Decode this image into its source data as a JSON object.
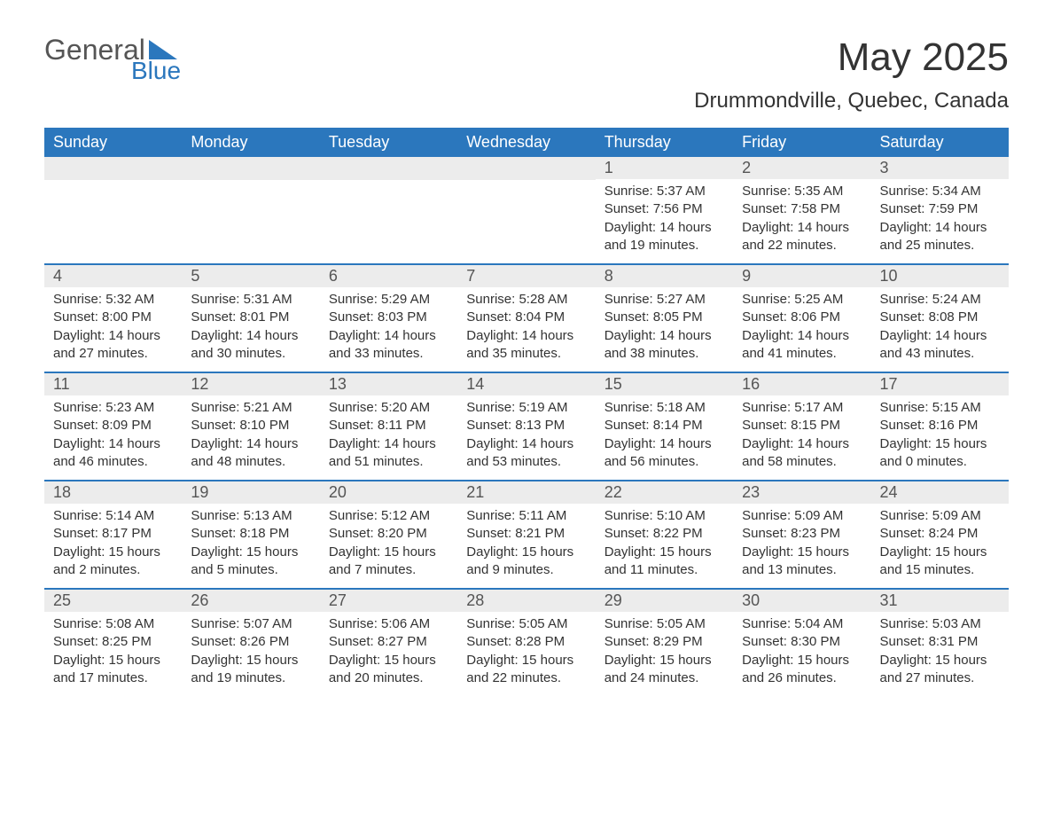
{
  "logo": {
    "text1": "General",
    "text2": "Blue",
    "triangle_color": "#2b77bd"
  },
  "title": "May 2025",
  "location": "Drummondville, Quebec, Canada",
  "colors": {
    "header_bg": "#2b77bd",
    "header_text": "#ffffff",
    "daynum_bg": "#ececec",
    "daynum_text": "#555555",
    "body_text": "#333333",
    "week_divider": "#2b77bd"
  },
  "weekdays": [
    "Sunday",
    "Monday",
    "Tuesday",
    "Wednesday",
    "Thursday",
    "Friday",
    "Saturday"
  ],
  "weeks": [
    [
      {
        "day": null
      },
      {
        "day": null
      },
      {
        "day": null
      },
      {
        "day": null
      },
      {
        "day": "1",
        "sunrise": "Sunrise: 5:37 AM",
        "sunset": "Sunset: 7:56 PM",
        "daylight": "Daylight: 14 hours and 19 minutes."
      },
      {
        "day": "2",
        "sunrise": "Sunrise: 5:35 AM",
        "sunset": "Sunset: 7:58 PM",
        "daylight": "Daylight: 14 hours and 22 minutes."
      },
      {
        "day": "3",
        "sunrise": "Sunrise: 5:34 AM",
        "sunset": "Sunset: 7:59 PM",
        "daylight": "Daylight: 14 hours and 25 minutes."
      }
    ],
    [
      {
        "day": "4",
        "sunrise": "Sunrise: 5:32 AM",
        "sunset": "Sunset: 8:00 PM",
        "daylight": "Daylight: 14 hours and 27 minutes."
      },
      {
        "day": "5",
        "sunrise": "Sunrise: 5:31 AM",
        "sunset": "Sunset: 8:01 PM",
        "daylight": "Daylight: 14 hours and 30 minutes."
      },
      {
        "day": "6",
        "sunrise": "Sunrise: 5:29 AM",
        "sunset": "Sunset: 8:03 PM",
        "daylight": "Daylight: 14 hours and 33 minutes."
      },
      {
        "day": "7",
        "sunrise": "Sunrise: 5:28 AM",
        "sunset": "Sunset: 8:04 PM",
        "daylight": "Daylight: 14 hours and 35 minutes."
      },
      {
        "day": "8",
        "sunrise": "Sunrise: 5:27 AM",
        "sunset": "Sunset: 8:05 PM",
        "daylight": "Daylight: 14 hours and 38 minutes."
      },
      {
        "day": "9",
        "sunrise": "Sunrise: 5:25 AM",
        "sunset": "Sunset: 8:06 PM",
        "daylight": "Daylight: 14 hours and 41 minutes."
      },
      {
        "day": "10",
        "sunrise": "Sunrise: 5:24 AM",
        "sunset": "Sunset: 8:08 PM",
        "daylight": "Daylight: 14 hours and 43 minutes."
      }
    ],
    [
      {
        "day": "11",
        "sunrise": "Sunrise: 5:23 AM",
        "sunset": "Sunset: 8:09 PM",
        "daylight": "Daylight: 14 hours and 46 minutes."
      },
      {
        "day": "12",
        "sunrise": "Sunrise: 5:21 AM",
        "sunset": "Sunset: 8:10 PM",
        "daylight": "Daylight: 14 hours and 48 minutes."
      },
      {
        "day": "13",
        "sunrise": "Sunrise: 5:20 AM",
        "sunset": "Sunset: 8:11 PM",
        "daylight": "Daylight: 14 hours and 51 minutes."
      },
      {
        "day": "14",
        "sunrise": "Sunrise: 5:19 AM",
        "sunset": "Sunset: 8:13 PM",
        "daylight": "Daylight: 14 hours and 53 minutes."
      },
      {
        "day": "15",
        "sunrise": "Sunrise: 5:18 AM",
        "sunset": "Sunset: 8:14 PM",
        "daylight": "Daylight: 14 hours and 56 minutes."
      },
      {
        "day": "16",
        "sunrise": "Sunrise: 5:17 AM",
        "sunset": "Sunset: 8:15 PM",
        "daylight": "Daylight: 14 hours and 58 minutes."
      },
      {
        "day": "17",
        "sunrise": "Sunrise: 5:15 AM",
        "sunset": "Sunset: 8:16 PM",
        "daylight": "Daylight: 15 hours and 0 minutes."
      }
    ],
    [
      {
        "day": "18",
        "sunrise": "Sunrise: 5:14 AM",
        "sunset": "Sunset: 8:17 PM",
        "daylight": "Daylight: 15 hours and 2 minutes."
      },
      {
        "day": "19",
        "sunrise": "Sunrise: 5:13 AM",
        "sunset": "Sunset: 8:18 PM",
        "daylight": "Daylight: 15 hours and 5 minutes."
      },
      {
        "day": "20",
        "sunrise": "Sunrise: 5:12 AM",
        "sunset": "Sunset: 8:20 PM",
        "daylight": "Daylight: 15 hours and 7 minutes."
      },
      {
        "day": "21",
        "sunrise": "Sunrise: 5:11 AM",
        "sunset": "Sunset: 8:21 PM",
        "daylight": "Daylight: 15 hours and 9 minutes."
      },
      {
        "day": "22",
        "sunrise": "Sunrise: 5:10 AM",
        "sunset": "Sunset: 8:22 PM",
        "daylight": "Daylight: 15 hours and 11 minutes."
      },
      {
        "day": "23",
        "sunrise": "Sunrise: 5:09 AM",
        "sunset": "Sunset: 8:23 PM",
        "daylight": "Daylight: 15 hours and 13 minutes."
      },
      {
        "day": "24",
        "sunrise": "Sunrise: 5:09 AM",
        "sunset": "Sunset: 8:24 PM",
        "daylight": "Daylight: 15 hours and 15 minutes."
      }
    ],
    [
      {
        "day": "25",
        "sunrise": "Sunrise: 5:08 AM",
        "sunset": "Sunset: 8:25 PM",
        "daylight": "Daylight: 15 hours and 17 minutes."
      },
      {
        "day": "26",
        "sunrise": "Sunrise: 5:07 AM",
        "sunset": "Sunset: 8:26 PM",
        "daylight": "Daylight: 15 hours and 19 minutes."
      },
      {
        "day": "27",
        "sunrise": "Sunrise: 5:06 AM",
        "sunset": "Sunset: 8:27 PM",
        "daylight": "Daylight: 15 hours and 20 minutes."
      },
      {
        "day": "28",
        "sunrise": "Sunrise: 5:05 AM",
        "sunset": "Sunset: 8:28 PM",
        "daylight": "Daylight: 15 hours and 22 minutes."
      },
      {
        "day": "29",
        "sunrise": "Sunrise: 5:05 AM",
        "sunset": "Sunset: 8:29 PM",
        "daylight": "Daylight: 15 hours and 24 minutes."
      },
      {
        "day": "30",
        "sunrise": "Sunrise: 5:04 AM",
        "sunset": "Sunset: 8:30 PM",
        "daylight": "Daylight: 15 hours and 26 minutes."
      },
      {
        "day": "31",
        "sunrise": "Sunrise: 5:03 AM",
        "sunset": "Sunset: 8:31 PM",
        "daylight": "Daylight: 15 hours and 27 minutes."
      }
    ]
  ]
}
